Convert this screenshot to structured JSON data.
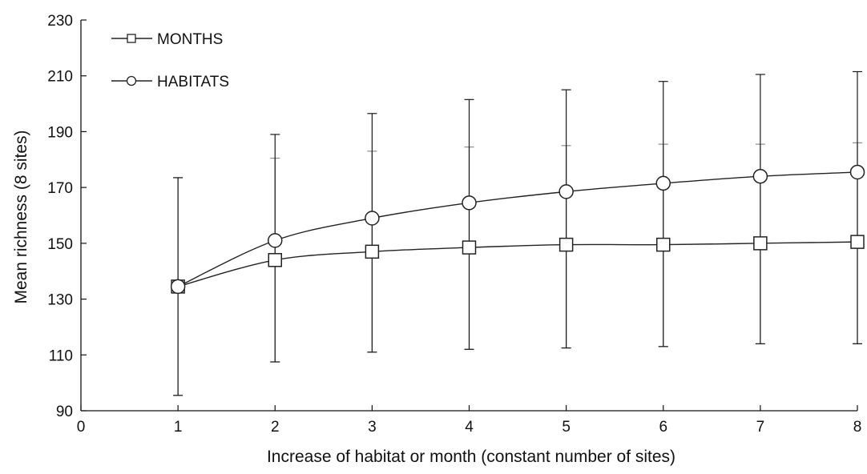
{
  "chart_data": {
    "type": "line",
    "title": "",
    "xlabel": "Increase of habitat or month (constant number of sites)",
    "ylabel": "Mean richness (8 sites)",
    "xlim": [
      0,
      8
    ],
    "ylim": [
      90,
      230
    ],
    "x_ticks": [
      0,
      1,
      2,
      3,
      4,
      5,
      6,
      7,
      8
    ],
    "y_ticks": [
      90,
      110,
      130,
      150,
      170,
      190,
      210,
      230
    ],
    "grid": false,
    "legend_position": "top-left",
    "series": [
      {
        "name": "MONTHS",
        "marker": "square",
        "color": "#222222",
        "x": [
          1,
          2,
          3,
          4,
          5,
          6,
          7,
          8
        ],
        "y": [
          134.5,
          144,
          147,
          148.5,
          149.5,
          149.5,
          150,
          150.5
        ],
        "error_low": [
          95.5,
          107.5,
          111,
          112,
          112.5,
          113,
          114,
          114
        ],
        "error_high": [
          173.5,
          180.5,
          183,
          184.5,
          185,
          185.5,
          185.5,
          186
        ]
      },
      {
        "name": "HABITATS",
        "marker": "circle",
        "color": "#222222",
        "x": [
          1,
          2,
          3,
          4,
          5,
          6,
          7,
          8
        ],
        "y": [
          134.5,
          151,
          159,
          164.5,
          168.5,
          171.5,
          174,
          175.5
        ],
        "error_low": [
          95.5,
          107.5,
          111,
          112,
          112.5,
          113,
          114,
          114
        ],
        "error_high": [
          173.5,
          189,
          196.5,
          201.5,
          205,
          208,
          210.5,
          211.5
        ]
      }
    ]
  }
}
